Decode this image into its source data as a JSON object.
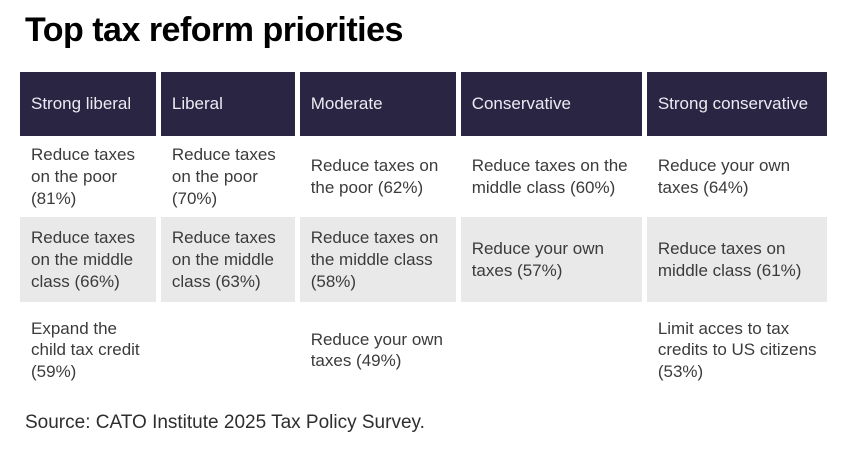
{
  "title": "Top tax reform priorities",
  "source": "Source: CATO Institute 2025 Tax Policy Survey.",
  "colors": {
    "header_bg": "#2a2543",
    "header_text": "#eceaf2",
    "alt_row_bg": "#e9e9e9",
    "body_text": "#3b3b3b",
    "title_text": "#000000"
  },
  "chart_data": {
    "type": "table",
    "title": "Top tax reform priorities",
    "columns": [
      "Strong liberal",
      "Liberal",
      "Moderate",
      "Conservative",
      "Strong conservative"
    ],
    "rows": [
      [
        "Reduce taxes on the poor (81%)",
        "Reduce taxes on the poor (70%)",
        "Reduce taxes on the poor (62%)",
        "Reduce taxes on the middle class (60%)",
        "Reduce your own taxes (64%)"
      ],
      [
        "Reduce taxes on the middle class (66%)",
        "Reduce taxes on the middle class (63%)",
        "Reduce taxes on the middle class (58%)",
        "Reduce your own taxes (57%)",
        "Reduce taxes on middle class (61%)"
      ],
      [
        "Expand the child tax credit (59%)",
        "",
        "Reduce your own taxes (49%)",
        "",
        "Limit acces to tax credits to US citizens (53%)"
      ]
    ],
    "source": "Source: CATO Institute 2025 Tax Policy Survey.",
    "layout": {
      "striped_row_index": 1,
      "legend": "none",
      "grid": "off"
    }
  }
}
